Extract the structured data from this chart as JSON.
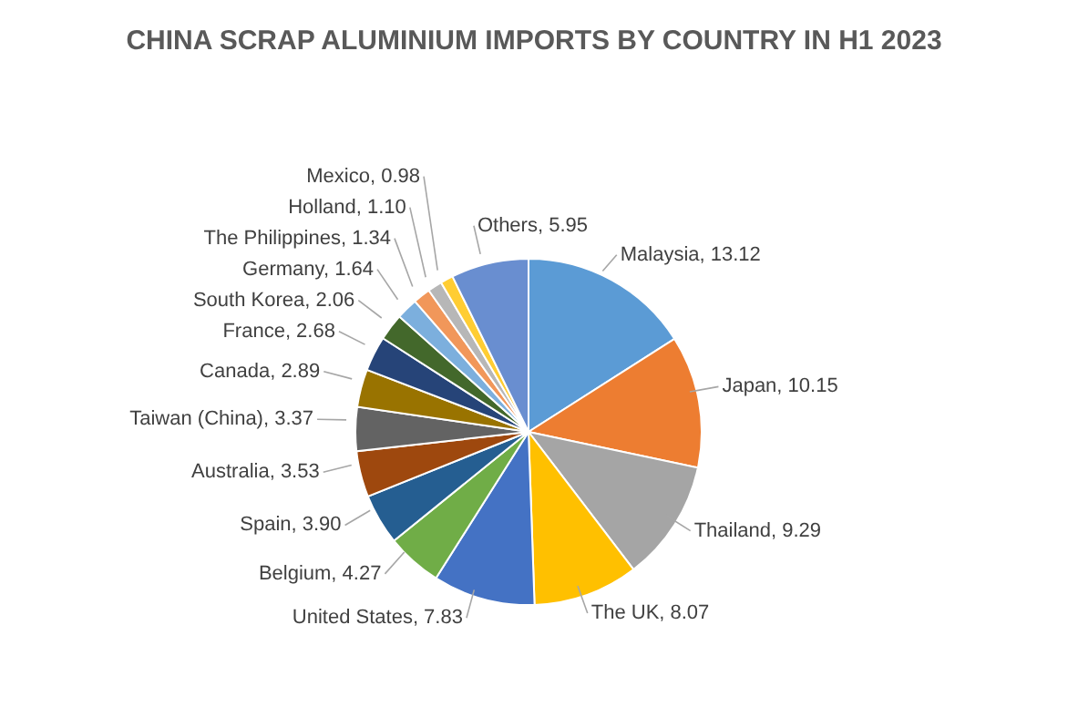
{
  "chart_data": {
    "type": "pie",
    "title": "CHINA SCRAP ALUMINIUM IMPORTS BY COUNTRY IN H1 2023",
    "categories": [
      "Malaysia",
      "Japan",
      "Thailand",
      "The UK",
      "United States",
      "Belgium",
      "Spain",
      "Australia",
      "Taiwan (China)",
      "Canada",
      "France",
      "South Korea",
      "Germany",
      "The Philippines",
      "Holland",
      "Mexico",
      "Others"
    ],
    "values": [
      13.12,
      10.15,
      9.29,
      8.07,
      7.83,
      4.27,
      3.9,
      3.53,
      3.37,
      2.89,
      2.68,
      2.06,
      1.64,
      1.34,
      1.1,
      0.98,
      5.95
    ],
    "value_labels": [
      "13.12",
      "10.15",
      "9.29",
      "8.07",
      "7.83",
      "4.27",
      "3.90",
      "3.53",
      "3.37",
      "2.89",
      "2.68",
      "2.06",
      "1.64",
      "1.34",
      "1.10",
      "0.98",
      "5.95"
    ],
    "colors": [
      "#5b9bd5",
      "#ed7d31",
      "#a5a5a5",
      "#ffc000",
      "#4472c4",
      "#70ad47",
      "#255e91",
      "#9e480e",
      "#636363",
      "#997300",
      "#264478",
      "#43682b",
      "#7cafdd",
      "#f1975a",
      "#b7b7b7",
      "#ffcd33",
      "#698ed0"
    ],
    "legend": false
  }
}
